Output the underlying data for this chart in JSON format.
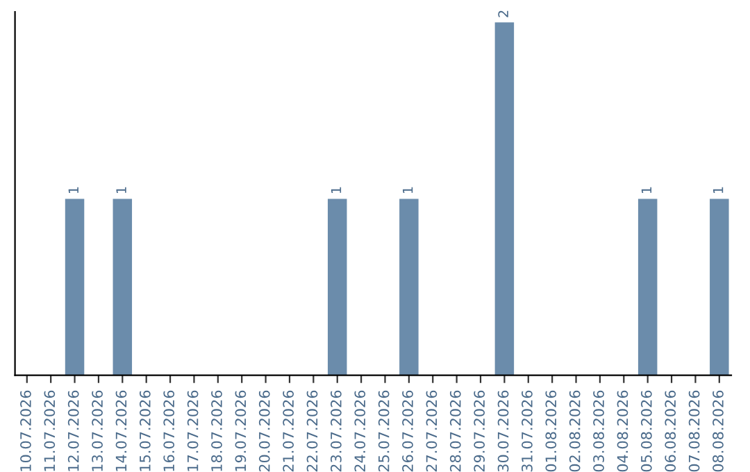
{
  "chart_data": {
    "type": "bar",
    "categories": [
      "10.07.2026",
      "11.07.2026",
      "12.07.2026",
      "13.07.2026",
      "14.07.2026",
      "15.07.2026",
      "16.07.2026",
      "17.07.2026",
      "18.07.2026",
      "19.07.2026",
      "20.07.2026",
      "21.07.2026",
      "22.07.2026",
      "23.07.2026",
      "24.07.2026",
      "25.07.2026",
      "26.07.2026",
      "27.07.2026",
      "28.07.2026",
      "29.07.2026",
      "30.07.2026",
      "31.07.2026",
      "01.08.2026",
      "02.08.2026",
      "03.08.2026",
      "04.08.2026",
      "05.08.2026",
      "06.08.2026",
      "07.08.2026",
      "08.08.2026"
    ],
    "values": [
      0,
      0,
      1,
      0,
      1,
      0,
      0,
      0,
      0,
      0,
      0,
      0,
      0,
      1,
      0,
      0,
      1,
      0,
      0,
      0,
      2,
      0,
      0,
      0,
      0,
      0,
      1,
      0,
      0,
      1
    ],
    "color": "#6b8cab",
    "value_labels": [
      null,
      null,
      "1",
      null,
      "1",
      null,
      null,
      null,
      null,
      null,
      null,
      null,
      null,
      "1",
      null,
      null,
      "1",
      null,
      null,
      null,
      "2",
      null,
      null,
      null,
      null,
      null,
      "1",
      null,
      null,
      "1"
    ],
    "tick_labels": "x",
    "grid": false,
    "legend": false
  }
}
